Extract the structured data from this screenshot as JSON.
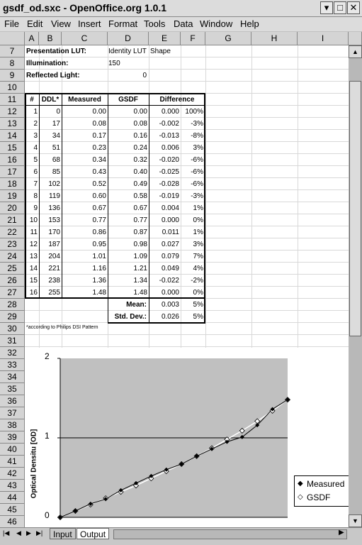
{
  "window": {
    "title": "gsdf_od.sxc - OpenOffice.org 1.0.1",
    "btn_min": "▾",
    "btn_max": "□",
    "btn_close": "✕"
  },
  "menu": [
    "File",
    "Edit",
    "View",
    "Insert",
    "Format",
    "Tools",
    "Data",
    "Window",
    "Help"
  ],
  "columns": [
    "A",
    "B",
    "C",
    "D",
    "E",
    "F",
    "G",
    "H",
    "I"
  ],
  "rows": [
    "7",
    "8",
    "9",
    "10",
    "11",
    "12",
    "13",
    "14",
    "15",
    "16",
    "17",
    "18",
    "19",
    "20",
    "21",
    "22",
    "23",
    "24",
    "25",
    "26",
    "27",
    "28",
    "29",
    "30",
    "31",
    "32",
    "33",
    "34",
    "35",
    "36",
    "37",
    "38",
    "39",
    "40",
    "41",
    "42",
    "43",
    "44",
    "45",
    "46"
  ],
  "info": {
    "lut_label": "Presentation LUT:",
    "lut_value": "Identity LUT",
    "lut_extra": "Shape",
    "illum_label": "Illumination:",
    "illum_value": "150",
    "refl_label": "Reflected Light:",
    "refl_value": "0"
  },
  "table": {
    "headers": [
      "#",
      "DDL*",
      "Measured",
      "GSDF",
      "Difference"
    ],
    "rows": [
      [
        "1",
        "0",
        "0.00",
        "0.00",
        "0.000",
        "100%"
      ],
      [
        "2",
        "17",
        "0.08",
        "0.08",
        "-0.002",
        "-3%"
      ],
      [
        "3",
        "34",
        "0.17",
        "0.16",
        "-0.013",
        "-8%"
      ],
      [
        "4",
        "51",
        "0.23",
        "0.24",
        "0.006",
        "3%"
      ],
      [
        "5",
        "68",
        "0.34",
        "0.32",
        "-0.020",
        "-6%"
      ],
      [
        "6",
        "85",
        "0.43",
        "0.40",
        "-0.025",
        "-6%"
      ],
      [
        "7",
        "102",
        "0.52",
        "0.49",
        "-0.028",
        "-6%"
      ],
      [
        "8",
        "119",
        "0.60",
        "0.58",
        "-0.019",
        "-3%"
      ],
      [
        "9",
        "136",
        "0.67",
        "0.67",
        "0.004",
        "1%"
      ],
      [
        "10",
        "153",
        "0.77",
        "0.77",
        "0.000",
        "0%"
      ],
      [
        "11",
        "170",
        "0.86",
        "0.87",
        "0.011",
        "1%"
      ],
      [
        "12",
        "187",
        "0.95",
        "0.98",
        "0.027",
        "3%"
      ],
      [
        "13",
        "204",
        "1.01",
        "1.09",
        "0.079",
        "7%"
      ],
      [
        "14",
        "221",
        "1.16",
        "1.21",
        "0.049",
        "4%"
      ],
      [
        "15",
        "238",
        "1.36",
        "1.34",
        "-0.022",
        "-2%"
      ],
      [
        "16",
        "255",
        "1.48",
        "1.48",
        "0.000",
        "0%"
      ]
    ],
    "mean_label": "Mean:",
    "mean_abs": "0.003",
    "mean_pct": "5%",
    "std_label": "Std. Dev.:",
    "std_abs": "0.026",
    "std_pct": "5%",
    "footnote": "*according to Philips DSI Pattern"
  },
  "tabs": {
    "input": "Input",
    "output": "Output"
  },
  "chart_data": {
    "type": "scatter",
    "ylabel": "Optical Densitu [OD]",
    "ylim": [
      0,
      2
    ],
    "yticks": [
      "0",
      "1",
      "2"
    ],
    "grid": "horizontal",
    "legend_placement": "right",
    "series": [
      {
        "name": "Measured",
        "marker": "filled-diamond",
        "values": [
          0.0,
          0.08,
          0.17,
          0.23,
          0.34,
          0.43,
          0.52,
          0.6,
          0.67,
          0.77,
          0.86,
          0.95,
          1.01,
          1.16,
          1.36,
          1.48
        ]
      },
      {
        "name": "GSDF",
        "marker": "open-diamond",
        "values": [
          0.0,
          0.08,
          0.16,
          0.24,
          0.32,
          0.4,
          0.49,
          0.58,
          0.67,
          0.77,
          0.87,
          0.98,
          1.09,
          1.21,
          1.34,
          1.48
        ]
      }
    ],
    "plot_bg": "#c0c0c0"
  }
}
